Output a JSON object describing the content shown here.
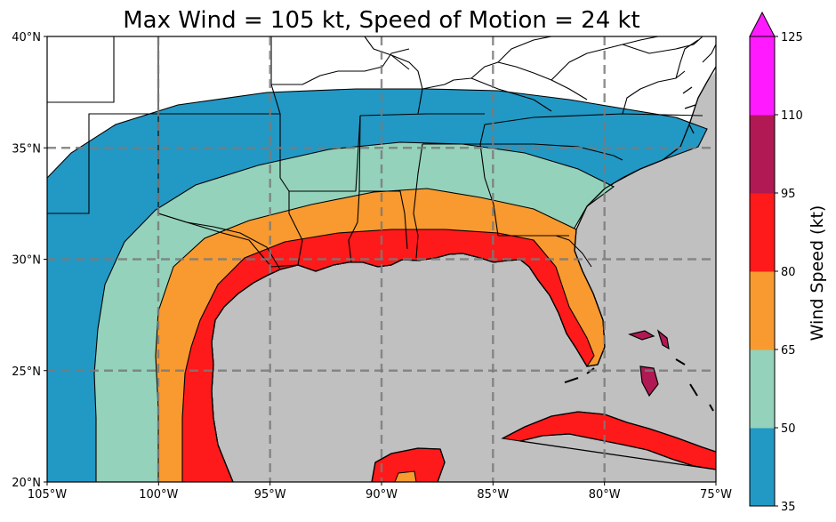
{
  "title": "Max Wind = 105 kt, Speed of Motion = 24 kt",
  "map": {
    "lon_range": [
      -105,
      -75
    ],
    "lat_range": [
      20,
      40
    ],
    "lon_ticks": [
      {
        "value": -105,
        "label": "105°W"
      },
      {
        "value": -100,
        "label": "100°W"
      },
      {
        "value": -95,
        "label": "95°W"
      },
      {
        "value": -90,
        "label": "90°W"
      },
      {
        "value": -85,
        "label": "85°W"
      },
      {
        "value": -80,
        "label": "80°W"
      },
      {
        "value": -75,
        "label": "75°W"
      }
    ],
    "lat_ticks": [
      {
        "value": 20,
        "label": "20°N"
      },
      {
        "value": 25,
        "label": "25°N"
      },
      {
        "value": 30,
        "label": "30°N"
      },
      {
        "value": 35,
        "label": "35°N"
      },
      {
        "value": 40,
        "label": "40°N"
      }
    ],
    "gridlines": "dashed",
    "ocean_color": "#c0c0c0",
    "land_color": "#ffffff"
  },
  "colorbar": {
    "label": "Wind Speed (kt)",
    "extend": "max",
    "levels": [
      {
        "value": 35,
        "label": "35"
      },
      {
        "value": 50,
        "label": "50"
      },
      {
        "value": 65,
        "label": "65"
      },
      {
        "value": 80,
        "label": "80"
      },
      {
        "value": 95,
        "label": "95"
      },
      {
        "value": 110,
        "label": "110"
      },
      {
        "value": 125,
        "label": "125"
      }
    ],
    "colors": [
      "#2298c4",
      "#94d2bb",
      "#f89a2f",
      "#fe1a1a",
      "#b01953",
      "#ff1aff"
    ]
  }
}
